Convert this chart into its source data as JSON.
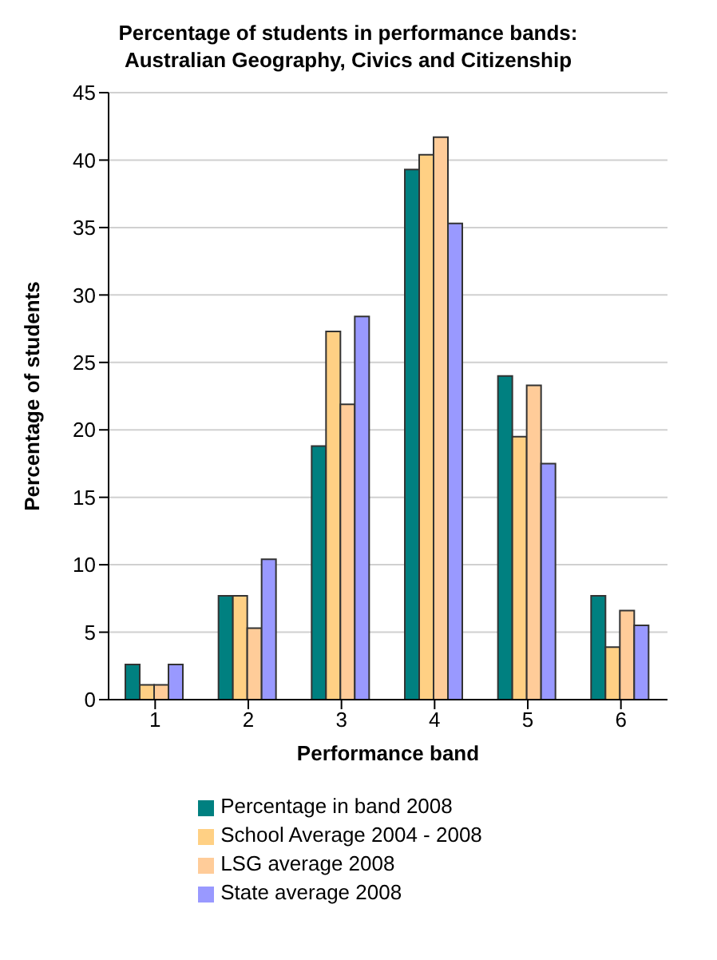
{
  "chart_data": {
    "type": "bar",
    "title": "Percentage of students in performance bands: Australian Geography, Civics and Citizenship",
    "xlabel": "Performance band",
    "ylabel": "Percentage of students",
    "categories": [
      "1",
      "2",
      "3",
      "4",
      "5",
      "6"
    ],
    "series": [
      {
        "name": "Percentage in band 2008",
        "color": "#008080",
        "values": [
          2.6,
          7.7,
          18.8,
          39.3,
          24.0,
          7.7
        ]
      },
      {
        "name": "School Average 2004 - 2008",
        "color": "#ffd084",
        "values": [
          1.1,
          7.7,
          27.3,
          40.4,
          19.5,
          3.9
        ]
      },
      {
        "name": "LSG average 2008",
        "color": "#ffcc99",
        "values": [
          1.1,
          5.3,
          21.9,
          41.7,
          23.3,
          6.6
        ]
      },
      {
        "name": "State average 2008",
        "color": "#9999ff",
        "values": [
          2.6,
          10.4,
          28.4,
          35.3,
          17.5,
          5.5
        ]
      }
    ],
    "ylim": [
      0,
      45
    ],
    "yticks": [
      0,
      5,
      10,
      15,
      20,
      25,
      30,
      35,
      40,
      45
    ],
    "grid": "y",
    "legend": "bottom"
  }
}
